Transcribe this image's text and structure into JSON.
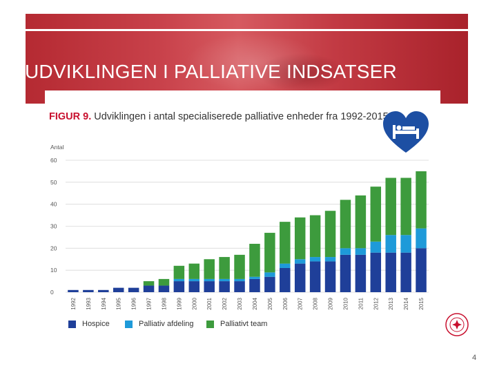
{
  "slide": {
    "title": "UDVIKLINGEN I PALLIATIVE INDSATSER",
    "page_number": "4"
  },
  "figure": {
    "label": "FIGUR 9.",
    "caption": "Udviklingen i antal specialiserede palliative enheder fra 1992-2015"
  },
  "colors": {
    "hospice": "#1f3f99",
    "palliativ_afdeling": "#1e9ad9",
    "palliativt_team": "#3d9b3d",
    "title_red": "#c8102e",
    "heart": "#1d4fa3"
  },
  "icons": {
    "heart": "heart-bed-icon",
    "logo": "organization-seal-icon"
  },
  "chart_data": {
    "type": "bar",
    "stacked": true,
    "ylabel": "Antal",
    "ylim": [
      0,
      60
    ],
    "yticks": [
      0,
      10,
      20,
      30,
      40,
      50,
      60
    ],
    "grid": true,
    "legend_position": "bottom-left",
    "categories": [
      "1992",
      "1993",
      "1994",
      "1995",
      "1996",
      "1997",
      "1998",
      "1999",
      "2000",
      "2001",
      "2002",
      "2003",
      "2004",
      "2005",
      "2006",
      "2007",
      "2008",
      "2009",
      "2010",
      "2011",
      "2012",
      "2013",
      "2014",
      "2015"
    ],
    "series": [
      {
        "name": "Hospice",
        "color": "#1f3f99",
        "values": [
          1,
          1,
          1,
          2,
          2,
          3,
          3,
          5,
          5,
          5,
          5,
          5,
          6,
          7,
          11,
          13,
          14,
          14,
          17,
          17,
          18,
          18,
          18,
          20
        ]
      },
      {
        "name": "Palliativ afdeling",
        "color": "#1e9ad9",
        "values": [
          0,
          0,
          0,
          0,
          0,
          0,
          0,
          1,
          1,
          1,
          1,
          1,
          1,
          2,
          2,
          2,
          2,
          2,
          3,
          3,
          5,
          8,
          8,
          9
        ]
      },
      {
        "name": "Palliativt team",
        "color": "#3d9b3d",
        "values": [
          0,
          0,
          0,
          0,
          0,
          2,
          3,
          6,
          7,
          9,
          10,
          11,
          15,
          18,
          19,
          19,
          19,
          21,
          22,
          24,
          25,
          26,
          26,
          26
        ]
      }
    ]
  }
}
